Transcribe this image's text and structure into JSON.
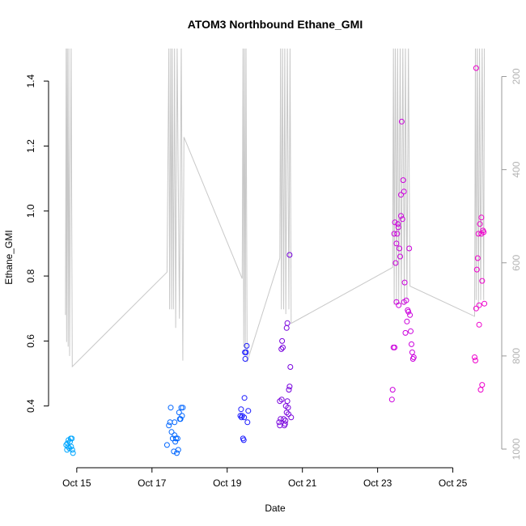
{
  "chart_data": {
    "type": "scatter",
    "title": "ATOM3 Northbound Ethane_GMI",
    "xlabel": "Date",
    "ylabel": "Ethane_GMI",
    "x_unit": "days (October)",
    "xlim": [
      14.25,
      26.3
    ],
    "ylim": [
      0.21,
      1.5
    ],
    "x_ticks": [
      {
        "value": 15,
        "label": "Oct 15"
      },
      {
        "value": 17,
        "label": "Oct 17"
      },
      {
        "value": 19,
        "label": "Oct 19"
      },
      {
        "value": 21,
        "label": "Oct 21"
      },
      {
        "value": 23,
        "label": "Oct 23"
      },
      {
        "value": 25,
        "label": "Oct 25"
      }
    ],
    "y_ticks": [
      0.4,
      0.6,
      0.8,
      1.0,
      1.2,
      1.4
    ],
    "y_tick_labels": [
      "0.4",
      "0.6",
      "0.8",
      "1.0",
      "1.2",
      "1.4"
    ],
    "secondary_axis": {
      "side": "right",
      "color": "#b3b3b3",
      "reversed": true,
      "ylim": [
        1040,
        140
      ],
      "ticks": [
        200,
        400,
        600,
        800,
        1000
      ],
      "tick_labels": [
        "200",
        "400",
        "600",
        "800",
        "1000"
      ]
    },
    "series": [
      {
        "color": "#00a6ff",
        "points": [
          [
            14.72,
            0.28
          ],
          [
            14.75,
            0.285
          ],
          [
            14.78,
            0.295
          ],
          [
            14.8,
            0.27
          ],
          [
            14.82,
            0.29
          ],
          [
            14.85,
            0.275
          ],
          [
            14.87,
            0.3
          ],
          [
            14.88,
            0.265
          ],
          [
            14.9,
            0.255
          ],
          [
            14.74,
            0.265
          ],
          [
            14.77,
            0.275
          ],
          [
            14.84,
            0.3
          ]
        ]
      },
      {
        "color": "#0066ff",
        "points": [
          [
            17.4,
            0.28
          ],
          [
            17.45,
            0.34
          ],
          [
            17.48,
            0.35
          ],
          [
            17.5,
            0.395
          ],
          [
            17.52,
            0.32
          ],
          [
            17.55,
            0.3
          ],
          [
            17.58,
            0.26
          ],
          [
            17.6,
            0.31
          ],
          [
            17.62,
            0.29
          ],
          [
            17.64,
            0.3
          ],
          [
            17.66,
            0.255
          ],
          [
            17.68,
            0.3
          ],
          [
            17.7,
            0.265
          ],
          [
            17.72,
            0.38
          ],
          [
            17.74,
            0.36
          ],
          [
            17.76,
            0.36
          ],
          [
            17.78,
            0.395
          ],
          [
            17.8,
            0.37
          ],
          [
            17.82,
            0.395
          ],
          [
            17.6,
            0.35
          ]
        ]
      },
      {
        "color": "#1a1aff",
        "points": [
          [
            19.35,
            0.37
          ],
          [
            19.37,
            0.39
          ],
          [
            19.38,
            0.365
          ],
          [
            19.4,
            0.37
          ],
          [
            19.42,
            0.3
          ],
          [
            19.44,
            0.295
          ],
          [
            19.46,
            0.425
          ],
          [
            19.48,
            0.545
          ],
          [
            19.5,
            0.565
          ],
          [
            19.52,
            0.585
          ],
          [
            19.54,
            0.35
          ],
          [
            19.56,
            0.385
          ],
          [
            19.45,
            0.365
          ],
          [
            19.47,
            0.565
          ]
        ]
      },
      {
        "color": "#7700dd",
        "points": [
          [
            20.38,
            0.35
          ],
          [
            20.4,
            0.34
          ],
          [
            20.42,
            0.36
          ],
          [
            20.44,
            0.575
          ],
          [
            20.46,
            0.6
          ],
          [
            20.48,
            0.58
          ],
          [
            20.5,
            0.36
          ],
          [
            20.52,
            0.34
          ],
          [
            20.54,
            0.345
          ],
          [
            20.56,
            0.4
          ],
          [
            20.58,
            0.38
          ],
          [
            20.6,
            0.415
          ],
          [
            20.62,
            0.395
          ],
          [
            20.64,
            0.45
          ],
          [
            20.66,
            0.46
          ],
          [
            20.68,
            0.52
          ],
          [
            20.7,
            0.365
          ],
          [
            20.66,
            0.865
          ],
          [
            20.6,
            0.655
          ],
          [
            20.58,
            0.64
          ],
          [
            20.4,
            0.415
          ],
          [
            20.45,
            0.42
          ],
          [
            20.55,
            0.355
          ],
          [
            20.63,
            0.375
          ]
        ]
      },
      {
        "color": "#cc00dd",
        "points": [
          [
            23.38,
            0.42
          ],
          [
            23.4,
            0.45
          ],
          [
            23.42,
            0.58
          ],
          [
            23.44,
            0.93
          ],
          [
            23.46,
            0.965
          ],
          [
            23.48,
            0.84
          ],
          [
            23.5,
            0.72
          ],
          [
            23.52,
            0.93
          ],
          [
            23.54,
            0.96
          ],
          [
            23.56,
            0.71
          ],
          [
            23.58,
            0.885
          ],
          [
            23.6,
            0.86
          ],
          [
            23.62,
            1.05
          ],
          [
            23.64,
            1.275
          ],
          [
            23.66,
            0.975
          ],
          [
            23.68,
            1.095
          ],
          [
            23.7,
            1.06
          ],
          [
            23.72,
            0.78
          ],
          [
            23.74,
            0.625
          ],
          [
            23.76,
            0.725
          ],
          [
            23.78,
            0.66
          ],
          [
            23.8,
            0.695
          ],
          [
            23.82,
            0.69
          ],
          [
            23.84,
            0.885
          ],
          [
            23.86,
            0.68
          ],
          [
            23.88,
            0.63
          ],
          [
            23.9,
            0.59
          ],
          [
            23.92,
            0.565
          ],
          [
            23.94,
            0.545
          ],
          [
            23.96,
            0.55
          ],
          [
            23.55,
            0.95
          ],
          [
            23.62,
            0.985
          ],
          [
            23.5,
            0.9
          ],
          [
            23.45,
            0.58
          ],
          [
            23.7,
            0.72
          ]
        ]
      },
      {
        "color": "#ee00cc",
        "points": [
          [
            25.58,
            0.55
          ],
          [
            25.6,
            0.54
          ],
          [
            25.62,
            0.7
          ],
          [
            25.64,
            0.82
          ],
          [
            25.66,
            0.855
          ],
          [
            25.68,
            0.93
          ],
          [
            25.7,
            0.65
          ],
          [
            25.72,
            0.96
          ],
          [
            25.74,
            0.45
          ],
          [
            25.76,
            0.93
          ],
          [
            25.78,
            0.785
          ],
          [
            25.8,
            0.94
          ],
          [
            25.82,
            0.935
          ],
          [
            25.84,
            0.715
          ],
          [
            25.62,
            1.44
          ],
          [
            25.7,
            0.71
          ],
          [
            25.76,
            0.98
          ],
          [
            25.78,
            0.465
          ]
        ]
      }
    ],
    "altitude_line": {
      "color": "#c8c8c8",
      "axis": "secondary",
      "points": [
        [
          14.7,
          712
        ],
        [
          14.72,
          130
        ],
        [
          14.73,
          770
        ],
        [
          14.75,
          130
        ],
        [
          14.77,
          780
        ],
        [
          14.79,
          130
        ],
        [
          14.81,
          800
        ],
        [
          14.85,
          130
        ],
        [
          14.88,
          823
        ],
        [
          17.4,
          620
        ],
        [
          17.45,
          130
        ],
        [
          17.47,
          700
        ],
        [
          17.5,
          130
        ],
        [
          17.52,
          700
        ],
        [
          17.54,
          130
        ],
        [
          17.57,
          700
        ],
        [
          17.6,
          130
        ],
        [
          17.63,
          740
        ],
        [
          17.67,
          130
        ],
        [
          17.73,
          720
        ],
        [
          17.78,
          130
        ],
        [
          17.82,
          810
        ],
        [
          17.85,
          330
        ],
        [
          19.4,
          634
        ],
        [
          19.42,
          130
        ],
        [
          19.44,
          780
        ],
        [
          19.46,
          130
        ],
        [
          19.48,
          800
        ],
        [
          19.5,
          130
        ],
        [
          19.53,
          813
        ],
        [
          20.4,
          590
        ],
        [
          20.42,
          130
        ],
        [
          20.44,
          700
        ],
        [
          20.47,
          130
        ],
        [
          20.5,
          700
        ],
        [
          20.53,
          130
        ],
        [
          20.56,
          710
        ],
        [
          20.6,
          130
        ],
        [
          20.64,
          700
        ],
        [
          20.67,
          130
        ],
        [
          20.7,
          730
        ],
        [
          23.4,
          610
        ],
        [
          23.42,
          130
        ],
        [
          23.44,
          690
        ],
        [
          23.47,
          130
        ],
        [
          23.5,
          690
        ],
        [
          23.53,
          130
        ],
        [
          23.56,
          690
        ],
        [
          23.6,
          130
        ],
        [
          23.63,
          690
        ],
        [
          23.67,
          130
        ],
        [
          23.71,
          690
        ],
        [
          23.74,
          130
        ],
        [
          23.78,
          680
        ],
        [
          23.82,
          130
        ],
        [
          23.86,
          650
        ],
        [
          25.58,
          715
        ],
        [
          25.6,
          130
        ],
        [
          25.62,
          680
        ],
        [
          25.65,
          130
        ],
        [
          25.68,
          700
        ],
        [
          25.71,
          130
        ],
        [
          25.74,
          680
        ],
        [
          25.78,
          130
        ],
        [
          25.82,
          680
        ],
        [
          25.84,
          130
        ]
      ]
    }
  }
}
